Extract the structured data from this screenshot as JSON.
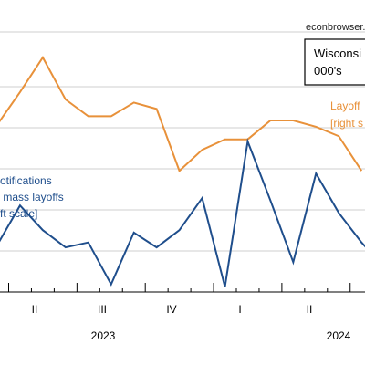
{
  "chart_data": {
    "type": "line",
    "source_note": "econbrowser.",
    "title_box": {
      "line1": "Wisconsi",
      "line2": "000's"
    },
    "x_quarter_labels": [
      "II",
      "III",
      "IV",
      "I",
      "II"
    ],
    "x_year_labels": [
      "2023",
      "2024"
    ],
    "x": [
      "2022-10",
      "2022-11",
      "2022-12",
      "2023-01",
      "2023-02",
      "2023-03",
      "2023-04",
      "2023-05",
      "2023-06",
      "2023-07",
      "2023-08",
      "2023-09",
      "2023-10",
      "2023-11",
      "2023-12",
      "2024-01",
      "2024-02",
      "2024-03",
      "2024-04",
      "2024-05",
      "2024-06",
      "2024-07"
    ],
    "series": [
      {
        "name": "Layoffs [right scale]",
        "label_lines": [
          "Layoff",
          "[right s"
        ],
        "color": "#e8913a",
        "axis": "right",
        "values": [
          4.4,
          7.5,
          10.8,
          6.8,
          5.2,
          5.2,
          6.5,
          5.9,
          0.0,
          2.0,
          3.0,
          3.0,
          4.8,
          4.8,
          4.2,
          3.3,
          0.0,
          null,
          null,
          null,
          null,
          null
        ]
      },
      {
        "name": "WARN notifications for mass layoffs [left scale]",
        "label_lines": [
          "otifications",
          " mass layoffs",
          "ft scale]"
        ],
        "color": "#1f4e8c",
        "axis": "left",
        "values": [
          1.9,
          3.5,
          2.5,
          1.8,
          2.0,
          0.3,
          2.4,
          1.8,
          2.5,
          3.8,
          0.2,
          6.1,
          3.7,
          1.2,
          4.8,
          3.2,
          2.0,
          1.0,
          null,
          null,
          null,
          null
        ]
      }
    ],
    "grid": true,
    "legend": "inline labels"
  }
}
